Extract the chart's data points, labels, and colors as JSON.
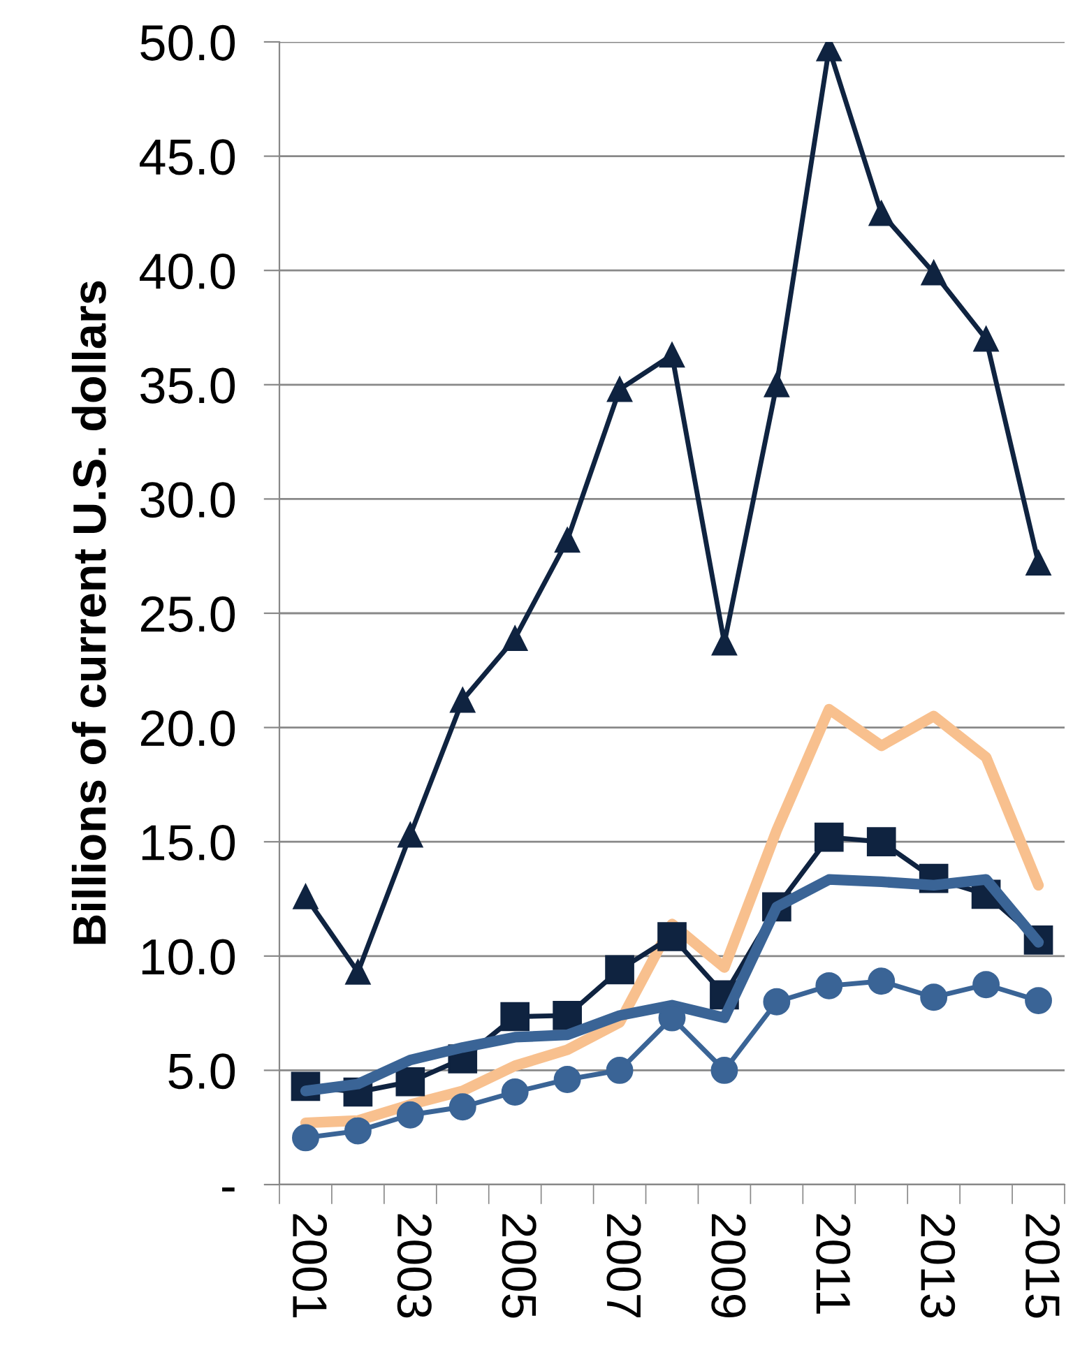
{
  "chart_data": {
    "type": "line",
    "ylabel": "Billions of current U.S. dollars",
    "categories": [
      "2001",
      null,
      "2003",
      null,
      "2005",
      null,
      "2007",
      null,
      "2009",
      null,
      "2011",
      null,
      "2013",
      null,
      "2015"
    ],
    "series": [
      {
        "color": "#0f2340",
        "marker": "triangle",
        "values": [
          12.6,
          9.3,
          15.3,
          21.2,
          23.9,
          28.2,
          34.8,
          36.3,
          23.7,
          35.0,
          49.7,
          42.5,
          39.9,
          37.0,
          27.2
        ]
      },
      {
        "color": "#f8c08e",
        "marker": "none",
        "values": [
          2.7,
          2.8,
          3.5,
          4.1,
          5.2,
          5.9,
          7.1,
          11.4,
          9.5,
          15.5,
          20.8,
          19.2,
          20.5,
          18.7,
          13.1
        ]
      },
      {
        "color": "#0f2340",
        "marker": "square",
        "values": [
          4.3,
          4.05,
          4.5,
          5.5,
          7.35,
          7.4,
          9.4,
          10.85,
          8.3,
          12.15,
          15.2,
          15.0,
          13.4,
          12.7,
          10.7
        ]
      },
      {
        "color": "#3a6496",
        "marker": "none",
        "values": [
          4.1,
          4.4,
          5.45,
          6.0,
          6.45,
          6.55,
          7.4,
          7.85,
          7.3,
          12.15,
          13.35,
          13.25,
          13.1,
          13.35,
          10.6
        ]
      },
      {
        "color": "#3a6496",
        "marker": "circle",
        "values": [
          2.05,
          2.35,
          3.05,
          3.4,
          4.05,
          4.6,
          5.0,
          7.3,
          5.0,
          8.0,
          8.7,
          8.9,
          8.2,
          8.75,
          8.05
        ]
      }
    ],
    "ylim": [
      0,
      50
    ],
    "yticks": [
      {
        "value": 0,
        "label": "-"
      },
      {
        "value": 5,
        "label": "5.0"
      },
      {
        "value": 10,
        "label": "10.0"
      },
      {
        "value": 15,
        "label": "15.0"
      },
      {
        "value": 20,
        "label": "20.0"
      },
      {
        "value": 25,
        "label": "25.0"
      },
      {
        "value": 30,
        "label": "30.0"
      },
      {
        "value": 35,
        "label": "35.0"
      },
      {
        "value": 40,
        "label": "40.0"
      },
      {
        "value": 45,
        "label": "45.0"
      },
      {
        "value": 50,
        "label": "50.0"
      }
    ],
    "grid": "y",
    "legend": false
  }
}
